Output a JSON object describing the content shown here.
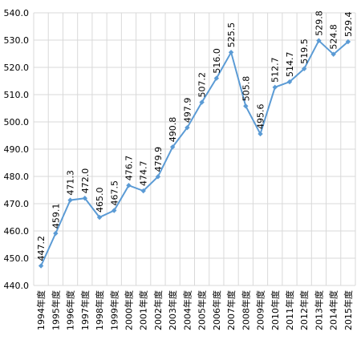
{
  "chart_data": {
    "type": "line",
    "categories": [
      "1994年度",
      "1995年度",
      "1996年度",
      "1997年度",
      "1998年度",
      "1999年度",
      "2000年度",
      "2001年度",
      "2002年度",
      "2003年度",
      "2004年度",
      "2005年度",
      "2006年度",
      "2007年度",
      "2008年度",
      "2009年度",
      "2010年度",
      "2011年度",
      "2012年度",
      "2013年度",
      "2014年度",
      "2015年度"
    ],
    "series": [
      {
        "values": [
          447.2,
          459.1,
          471.3,
          472.0,
          465.0,
          467.5,
          476.7,
          474.7,
          479.9,
          490.8,
          497.9,
          507.2,
          516.0,
          525.5,
          505.8,
          495.6,
          512.7,
          514.7,
          519.5,
          529.8,
          524.8,
          529.4
        ]
      }
    ],
    "data_labels": [
      "447.2",
      "459.1",
      "471.3",
      "472.0",
      "465.0",
      "467.5",
      "476.7",
      "474.7",
      "479.9",
      "490.8",
      "497.9",
      "507.2",
      "516.0",
      "525.5",
      "505.8",
      "495.6",
      "512.7",
      "514.7",
      "519.5",
      "529.8",
      "524.8",
      "529.4"
    ],
    "y_ticks": [
      "440.0",
      "450.0",
      "460.0",
      "470.0",
      "480.0",
      "490.0",
      "500.0",
      "510.0",
      "520.0",
      "530.0",
      "540.0"
    ],
    "ylim": [
      440,
      540
    ],
    "grid": true,
    "line_color": "#5b9bd5",
    "title": "",
    "xlabel": "",
    "ylabel": ""
  }
}
